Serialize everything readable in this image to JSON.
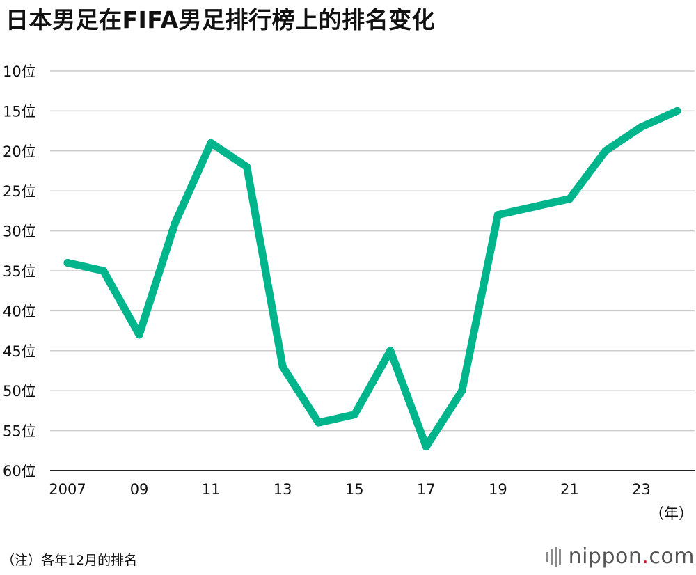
{
  "title": "日本男足在FIFA男足排行榜上的排名变化",
  "unit_label": "（年）",
  "note": "（注）各年12月的排名",
  "logo": {
    "pre": "nippon",
    "dot": ".",
    "post": "com"
  },
  "colors": {
    "line": "#00b48c",
    "grid": "#cccccc",
    "text": "#111111"
  },
  "chart_data": {
    "type": "line",
    "title": "日本男足在FIFA男足排行榜上的排名变化",
    "xlabel": "（年）",
    "ylabel": "",
    "x": [
      2007,
      2008,
      2009,
      2010,
      2011,
      2012,
      2013,
      2014,
      2015,
      2016,
      2017,
      2018,
      2019,
      2020,
      2021,
      2022,
      2023,
      2024
    ],
    "series": [
      {
        "name": "",
        "values": [
          34,
          35,
          43,
          29,
          19,
          22,
          47,
          54,
          53,
          45,
          57,
          50,
          28,
          27,
          26,
          20,
          17,
          15
        ]
      }
    ],
    "y_ticks": [
      10,
      15,
      20,
      25,
      30,
      35,
      40,
      45,
      50,
      55,
      60
    ],
    "y_tick_labels": [
      "10位",
      "15位",
      "20位",
      "25位",
      "30位",
      "35位",
      "40位",
      "45位",
      "50位",
      "55位",
      "60位"
    ],
    "x_tick_values": [
      2007,
      2009,
      2011,
      2013,
      2015,
      2017,
      2019,
      2021,
      2023
    ],
    "x_tick_labels": [
      "2007",
      "09",
      "11",
      "13",
      "15",
      "17",
      "19",
      "21",
      "23"
    ],
    "ylim": [
      60,
      10
    ],
    "y_inverted": true,
    "xlim": [
      2007,
      2024
    ],
    "grid": "horizontal",
    "legend": "none"
  }
}
